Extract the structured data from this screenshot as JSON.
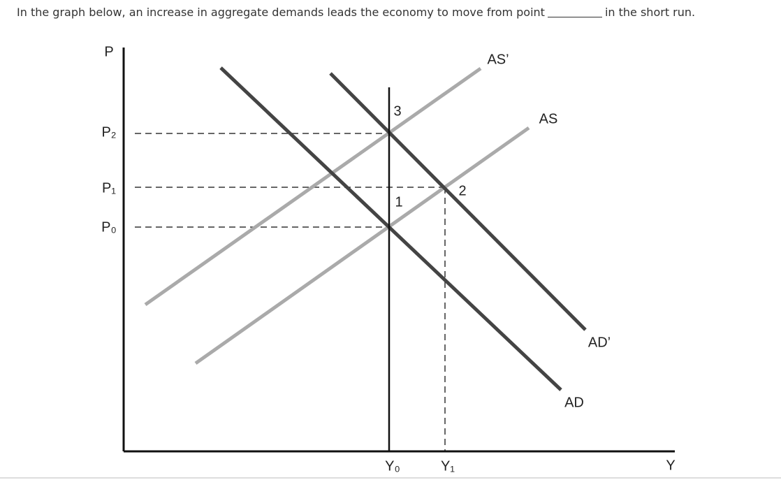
{
  "question": {
    "before": "In the graph below, an increase in aggregate demands leads the economy to move from point",
    "after": "in the short run."
  },
  "diagram": {
    "axes": {
      "y": "P",
      "x": "Y"
    },
    "price_levels": [
      "P₂",
      "P₁",
      "P₀"
    ],
    "output_levels": [
      "Y₀",
      "Y₁"
    ],
    "curves": {
      "as_prime": "AS’",
      "as": "AS",
      "ad_prime": "AD’",
      "ad": "AD"
    },
    "points": [
      "1",
      "2",
      "3"
    ]
  }
}
